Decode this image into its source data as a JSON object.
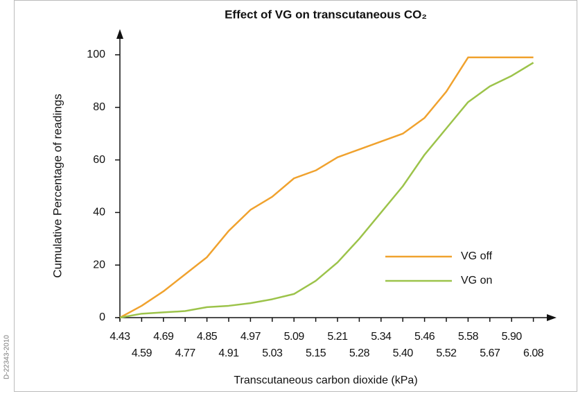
{
  "chart_data": {
    "type": "line",
    "title": "Effect of VG on transcutaneous CO₂",
    "xlabel": "Transcutaneous carbon dioxide (kPa)",
    "ylabel": "Cumulative Percentage of readings",
    "side_note": "D-22343-2010",
    "categories": [
      "4.43",
      "4.59",
      "4.69",
      "4.77",
      "4.85",
      "4.91",
      "4.97",
      "5.03",
      "5.09",
      "5.15",
      "5.21",
      "5.28",
      "5.34",
      "5.40",
      "5.46",
      "5.52",
      "5.58",
      "5.67",
      "5.90",
      "6.08"
    ],
    "series": [
      {
        "name": "VG off",
        "color": "#f0a22e",
        "values": [
          0,
          4.5,
          10,
          16.5,
          23,
          33,
          41,
          46,
          53,
          56,
          61,
          64,
          67,
          70,
          76,
          86,
          99,
          99,
          99,
          99
        ]
      },
      {
        "name": "VG on",
        "color": "#9cc34a",
        "values": [
          0,
          1.5,
          2,
          2.5,
          4,
          4.5,
          5.5,
          7,
          9,
          14,
          21,
          30,
          40,
          50,
          62,
          72,
          82,
          88,
          92,
          97
        ]
      }
    ],
    "ylim": [
      0,
      100
    ],
    "yticks": [
      0,
      20,
      40,
      60,
      80,
      100
    ],
    "grid": false,
    "legend": "lower right"
  }
}
